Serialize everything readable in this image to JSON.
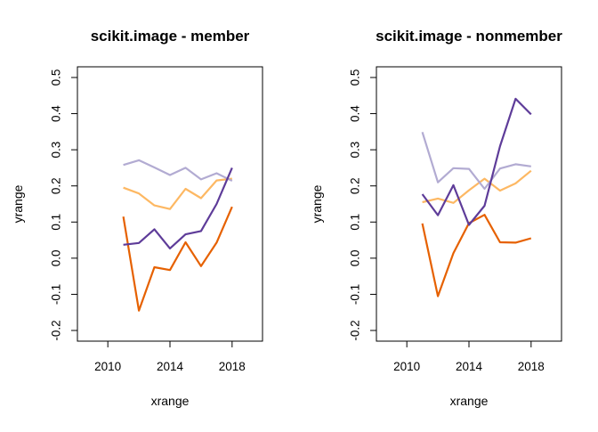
{
  "colors": {
    "series": [
      "#E66101",
      "#FDB863",
      "#B2ABD2",
      "#5E3C99"
    ],
    "axis": "#000000"
  },
  "chart_data": [
    {
      "type": "line",
      "title": "scikit.image - member",
      "xlabel": "xrange",
      "ylabel": "yrange",
      "xlim": [
        2008.5,
        2019.5
      ],
      "ylim": [
        -0.2,
        0.5
      ],
      "xticks": [
        2010,
        2014,
        2018
      ],
      "yticks": [
        -0.2,
        -0.1,
        0.0,
        0.1,
        0.2,
        0.3,
        0.4,
        0.5
      ],
      "xtick_labels": [
        "2010",
        "2014",
        "2018"
      ],
      "ytick_labels": [
        "-0.2",
        "-0.1",
        "0.0",
        "0.1",
        "0.2",
        "0.3",
        "0.4",
        "0.5"
      ],
      "x": [
        2011,
        2012,
        2013,
        2014,
        2015,
        2016,
        2017,
        2018
      ],
      "series": [
        {
          "values": [
            0.115,
            -0.145,
            -0.025,
            -0.033,
            0.044,
            -0.022,
            0.043,
            0.142
          ]
        },
        {
          "values": [
            0.195,
            0.179,
            0.146,
            0.136,
            0.192,
            0.166,
            0.215,
            0.22
          ]
        },
        {
          "values": [
            0.258,
            0.271,
            0.251,
            0.23,
            0.25,
            0.218,
            0.235,
            0.214
          ]
        },
        {
          "values": [
            0.037,
            0.042,
            0.08,
            0.027,
            0.066,
            0.075,
            0.15,
            0.25
          ]
        }
      ]
    },
    {
      "type": "line",
      "title": "scikit.image - nonmember",
      "xlabel": "xrange",
      "ylabel": "yrange",
      "xlim": [
        2008.5,
        2019.5
      ],
      "ylim": [
        -0.2,
        0.5
      ],
      "xticks": [
        2010,
        2014,
        2018
      ],
      "yticks": [
        -0.2,
        -0.1,
        0.0,
        0.1,
        0.2,
        0.3,
        0.4,
        0.5
      ],
      "xtick_labels": [
        "2010",
        "2014",
        "2018"
      ],
      "ytick_labels": [
        "-0.2",
        "-0.1",
        "0.0",
        "0.1",
        "0.2",
        "0.3",
        "0.4",
        "0.5"
      ],
      "x": [
        2011,
        2012,
        2013,
        2014,
        2015,
        2016,
        2017,
        2018
      ],
      "series": [
        {
          "values": [
            0.096,
            -0.105,
            0.014,
            0.097,
            0.12,
            0.044,
            0.043,
            0.055
          ]
        },
        {
          "values": [
            0.155,
            0.165,
            0.153,
            0.188,
            0.22,
            0.187,
            0.207,
            0.242
          ]
        },
        {
          "values": [
            0.349,
            0.21,
            0.249,
            0.247,
            0.192,
            0.248,
            0.26,
            0.254
          ]
        },
        {
          "values": [
            0.177,
            0.119,
            0.202,
            0.092,
            0.145,
            0.31,
            0.441,
            0.398
          ]
        }
      ]
    }
  ]
}
